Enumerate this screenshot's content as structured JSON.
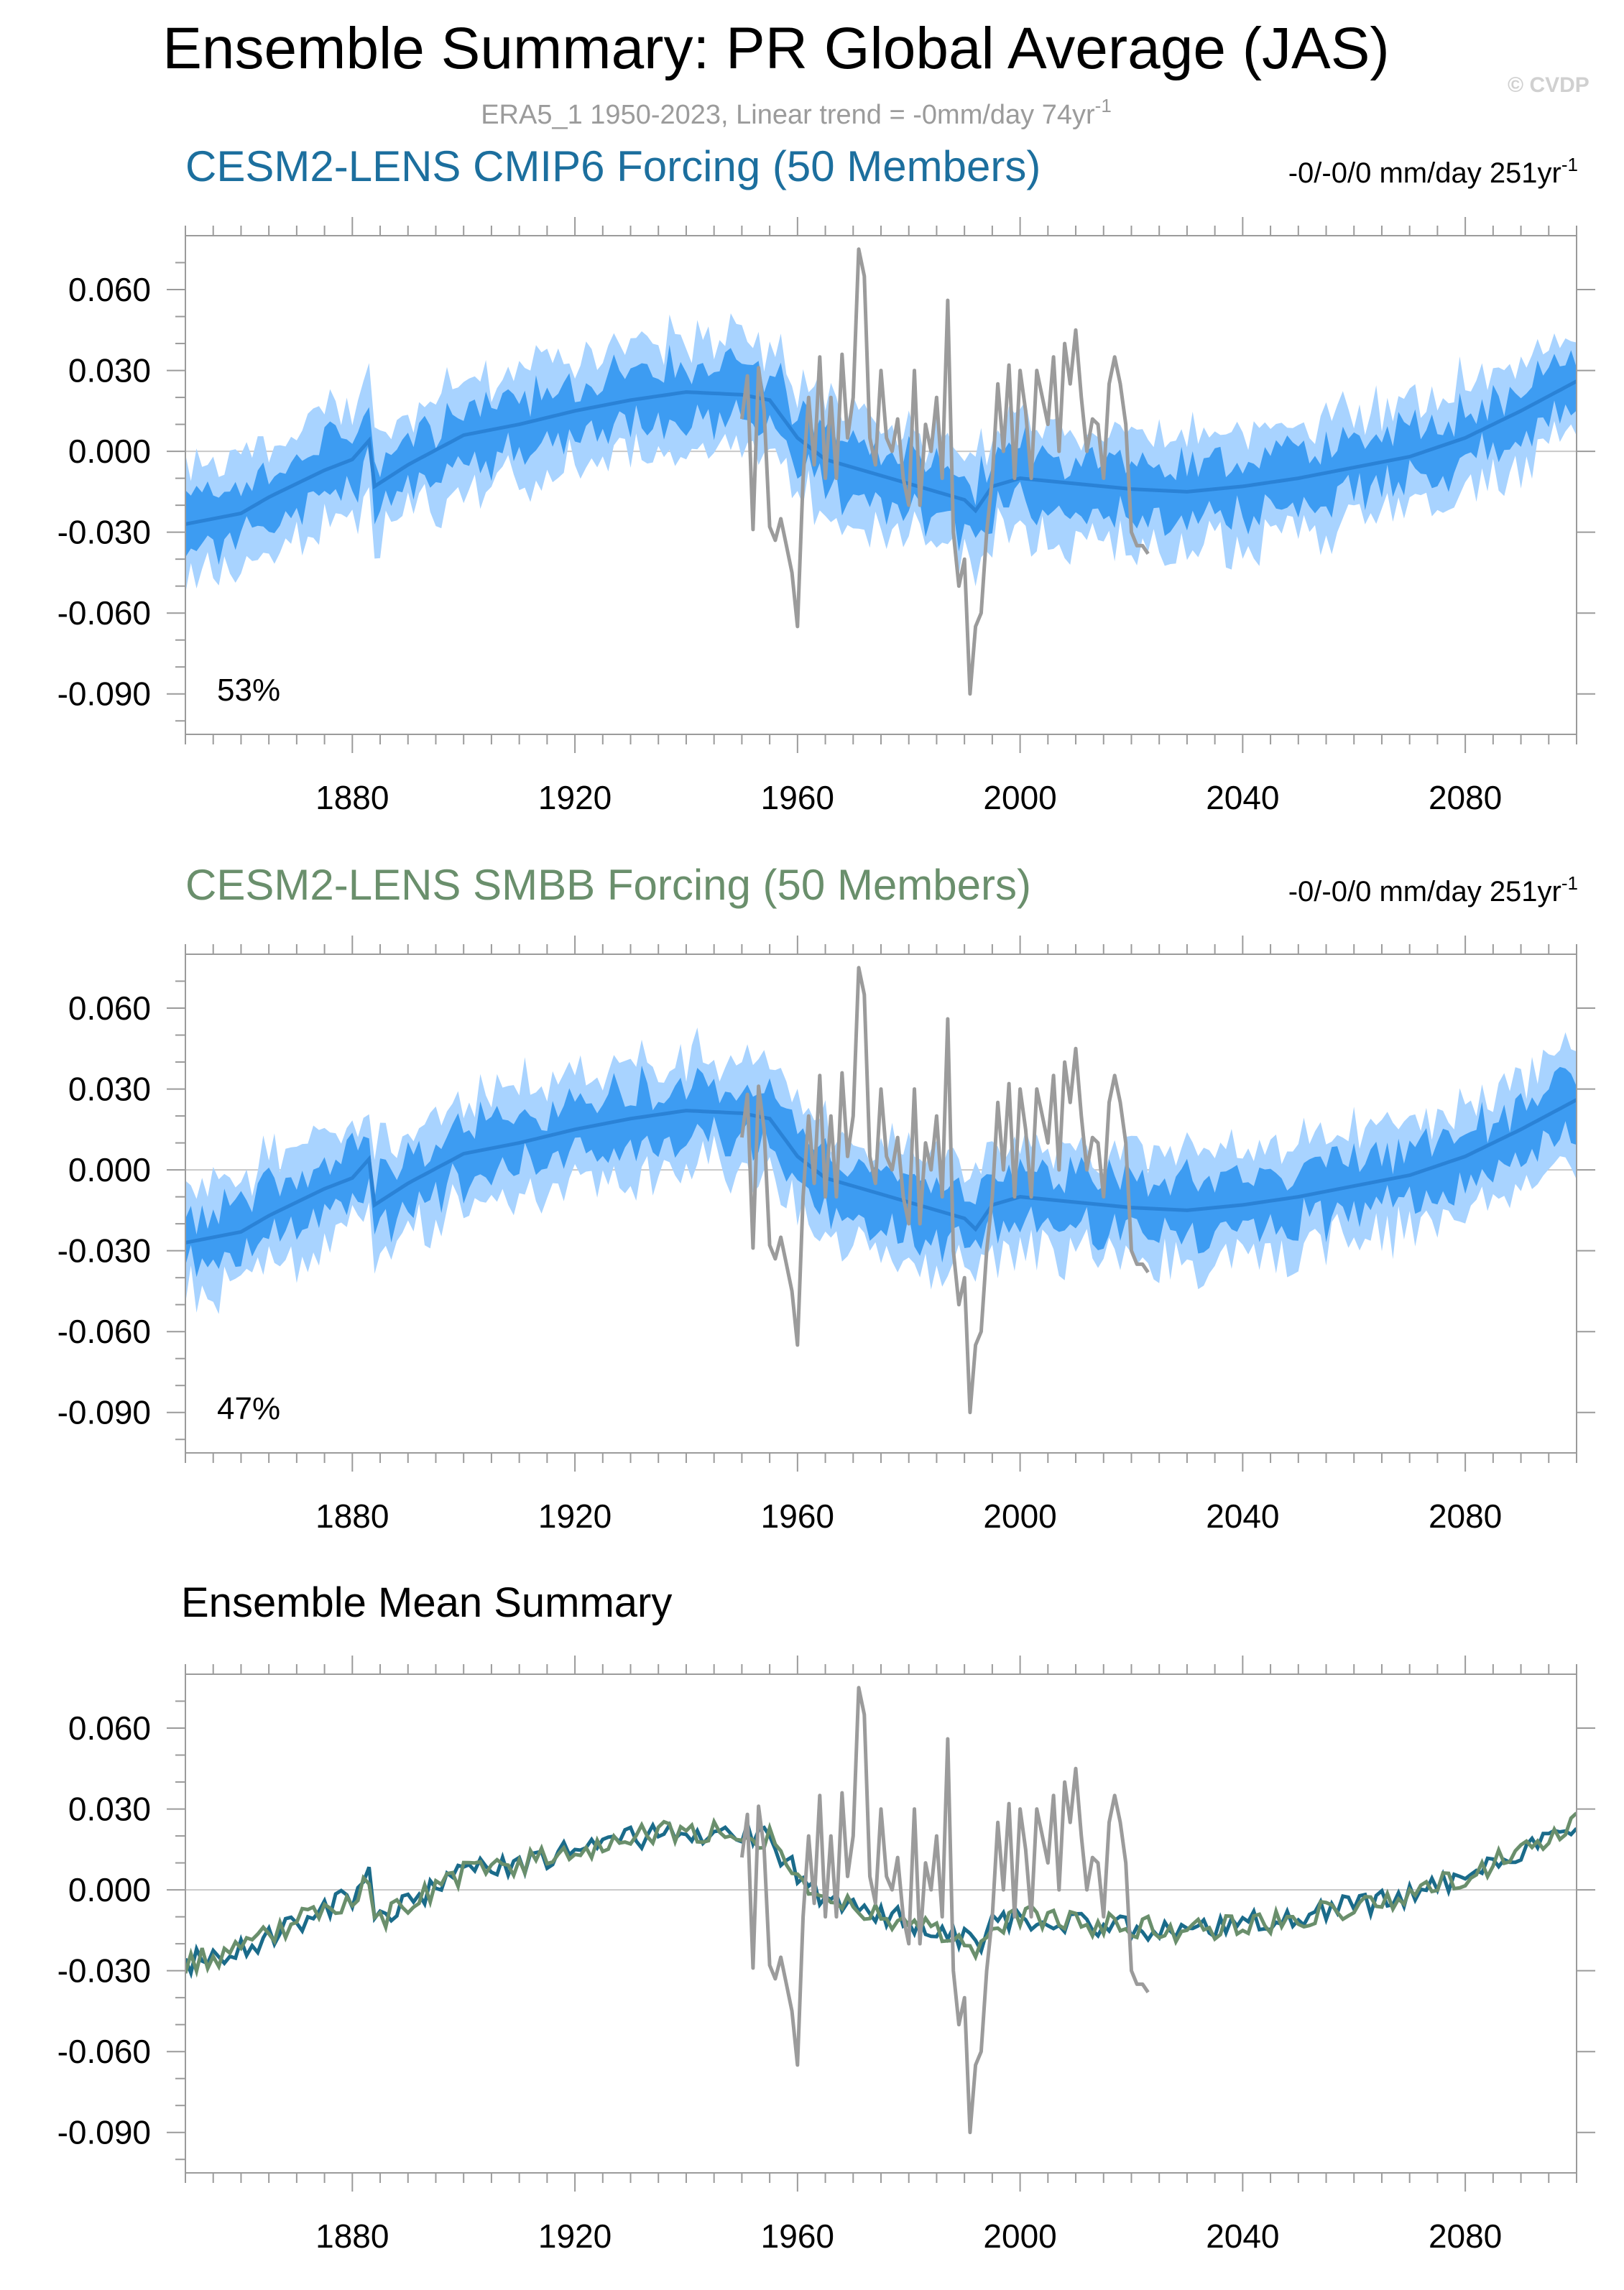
{
  "figure": {
    "title": "Ensemble Summary: PR Global Average (JAS)",
    "subtitle": "ERA5_1 1950-2023, Linear trend = -0mm/day 74yr",
    "subtitle_sup": "-1",
    "copyright": "© CVDP"
  },
  "colors": {
    "cmip6": "#1c6f9e",
    "smbb": "#6a8f6c",
    "obs": "#9b9b9b",
    "band_outer": "#a8d3ff",
    "band_inner": "#3d9cf2",
    "mean_line": "#2a82d6",
    "zero_line": "#c8c8c8",
    "mean_cmip6": "#1a6b8a",
    "mean_smbb": "#6a8f6c"
  },
  "panels": [
    {
      "title": "CESM2-LENS CMIP6 Forcing (50 Members)",
      "stat": "-0/-0/0 mm/day 251yr",
      "stat_sup": "-1",
      "percent": "53%",
      "title_color": "#1c6f9e"
    },
    {
      "title": "CESM2-LENS SMBB Forcing (50 Members)",
      "stat": "-0/-0/0 mm/day 251yr",
      "stat_sup": "-1",
      "percent": "47%",
      "title_color": "#6a8f6c"
    },
    {
      "title": "Ensemble Mean Summary",
      "title_color": "#000000"
    }
  ],
  "chart_data": {
    "type": "line",
    "title": "Ensemble Summary: PR Global Average (JAS)",
    "xlabel": "",
    "ylabel": "mm/day",
    "xlim": [
      1850,
      2100
    ],
    "ylim": [
      -0.105,
      0.08
    ],
    "x_ticks": [
      1880,
      1920,
      1960,
      2000,
      2040,
      2080
    ],
    "y_ticks": [
      -0.09,
      -0.06,
      -0.03,
      0.0,
      0.03,
      0.06
    ],
    "y_tick_labels": [
      "-0.090",
      "-0.060",
      "-0.030",
      "0.000",
      "0.030",
      "0.060"
    ],
    "ensemble_mean_anchors": {
      "years": [
        1850,
        1855,
        1860,
        1865,
        1870,
        1875,
        1880,
        1883,
        1884,
        1890,
        1900,
        1910,
        1920,
        1930,
        1940,
        1950,
        1955,
        1960,
        1965,
        1970,
        1975,
        1980,
        1985,
        1990,
        1992,
        1995,
        2000,
        2010,
        2020,
        2030,
        2040,
        2050,
        2060,
        2070,
        2080,
        2090,
        2100
      ],
      "values": [
        -0.027,
        -0.025,
        -0.023,
        -0.017,
        -0.012,
        -0.007,
        -0.003,
        0.004,
        -0.013,
        -0.005,
        0.006,
        0.01,
        0.015,
        0.019,
        0.022,
        0.021,
        0.019,
        0.005,
        -0.003,
        -0.006,
        -0.009,
        -0.012,
        -0.015,
        -0.018,
        -0.022,
        -0.013,
        -0.01,
        -0.012,
        -0.014,
        -0.015,
        -0.013,
        -0.01,
        -0.006,
        -0.002,
        0.005,
        0.015,
        0.026
      ]
    },
    "band_inner_half_width": 0.01,
    "band_outer_half_width": 0.02,
    "series": [
      {
        "name": "ERA5_1 observations",
        "x": [
          1950,
          1951,
          1952,
          1953,
          1954,
          1955,
          1956,
          1957,
          1958,
          1959,
          1960,
          1961,
          1962,
          1963,
          1964,
          1965,
          1966,
          1967,
          1968,
          1969,
          1970,
          1971,
          1972,
          1973,
          1974,
          1975,
          1976,
          1977,
          1978,
          1979,
          1980,
          1981,
          1982,
          1983,
          1984,
          1985,
          1986,
          1987,
          1988,
          1989,
          1990,
          1991,
          1992,
          1993,
          1994,
          1995,
          1996,
          1997,
          1998,
          1999,
          2000,
          2001,
          2002,
          2003,
          2004,
          2005,
          2006,
          2007,
          2008,
          2009,
          2010,
          2011,
          2012,
          2013,
          2014,
          2015,
          2016,
          2017,
          2018,
          2019,
          2020,
          2021,
          2022,
          2023
        ],
        "values": [
          0.012,
          0.028,
          -0.029,
          0.031,
          0.015,
          -0.028,
          -0.033,
          -0.025,
          -0.035,
          -0.045,
          -0.065,
          -0.01,
          0.02,
          -0.005,
          0.035,
          -0.01,
          0.02,
          -0.01,
          0.036,
          0.005,
          0.02,
          0.075,
          0.065,
          0.005,
          -0.005,
          0.03,
          0.005,
          0.0,
          0.012,
          -0.01,
          -0.02,
          0.03,
          -0.02,
          0.01,
          0.0,
          0.02,
          -0.01,
          0.056,
          -0.03,
          -0.05,
          -0.04,
          -0.09,
          -0.065,
          -0.06,
          -0.03,
          -0.01,
          0.025,
          0.0,
          0.032,
          -0.01,
          0.03,
          0.015,
          -0.01,
          0.03,
          0.02,
          0.01,
          0.035,
          0.0,
          0.04,
          0.025,
          0.045,
          0.02,
          0.0,
          0.012,
          0.01,
          -0.01,
          0.025,
          0.035,
          0.025,
          0.01,
          -0.03,
          -0.035,
          -0.035,
          -0.038
        ]
      },
      {
        "name": "CESM2-LENS CMIP6 Forcing (50 Members)",
        "x_range": [
          1850,
          2100
        ]
      },
      {
        "name": "CESM2-LENS SMBB Forcing (50 Members)",
        "x_range": [
          1850,
          2100
        ]
      }
    ]
  }
}
